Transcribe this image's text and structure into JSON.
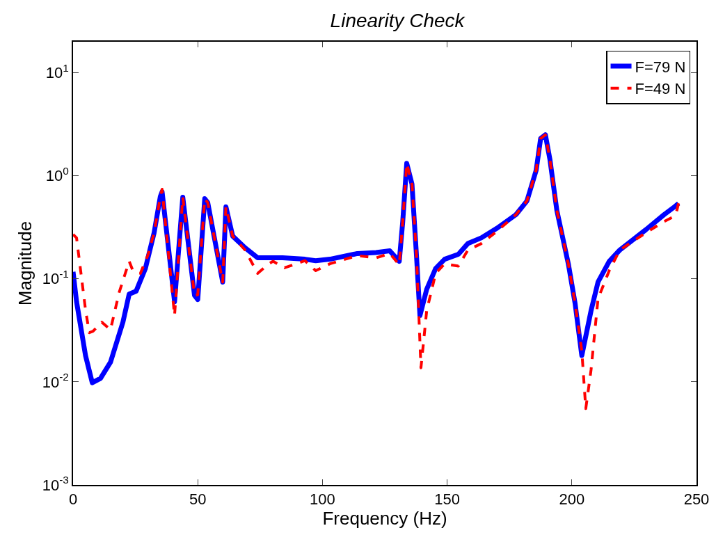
{
  "chart_data": {
    "type": "line",
    "title": "Linearity Check",
    "xlabel": "Frequency (Hz)",
    "ylabel": "Magnitude",
    "log": "y",
    "xlim": [
      0,
      250
    ],
    "xticks": [
      0,
      50,
      100,
      150,
      200,
      250
    ],
    "ylim": [
      0.001,
      20
    ],
    "yticks": [
      {
        "value": 0.001,
        "label": "10$^{-3}$"
      },
      {
        "value": 0.01,
        "label": "10$^{-2}$"
      },
      {
        "value": 0.1,
        "label": "10$^{-1}$"
      },
      {
        "value": 1,
        "label": "10$^{0}$"
      },
      {
        "value": 10,
        "label": "10$^{1}$"
      }
    ],
    "grid": false,
    "legend": "top right",
    "marker": "none",
    "series": [
      {
        "name": "F=79 N",
        "color": "#0000ff",
        "line_style": "solid",
        "x": [
          0,
          1.4,
          5,
          7.7,
          11,
          15,
          20,
          22.5,
          25.3,
          29,
          32.5,
          35,
          35.7,
          40.7,
          44,
          48.7,
          50,
          52.8,
          54,
          60,
          61.3,
          64,
          69,
          74,
          78.5,
          84,
          93,
          97.3,
          103,
          114,
          121.5,
          127,
          130.8,
          132.2,
          133.8,
          135.9,
          137.7,
          139.1,
          141.8,
          145.4,
          149,
          154.5,
          158.3,
          163.7,
          170,
          177.6,
          182,
          185.7,
          187.5,
          189.4,
          191.2,
          194,
          198.6,
          201.3,
          204,
          207.7,
          210.5,
          215,
          219.2,
          229.7,
          237,
          240.7,
          242.8
        ],
        "values": [
          0.117,
          0.06,
          0.018,
          0.0098,
          0.0108,
          0.0155,
          0.038,
          0.071,
          0.076,
          0.126,
          0.28,
          0.63,
          0.7,
          0.06,
          0.62,
          0.069,
          0.063,
          0.6,
          0.55,
          0.093,
          0.5,
          0.26,
          0.2,
          0.16,
          0.16,
          0.16,
          0.155,
          0.15,
          0.155,
          0.176,
          0.18,
          0.187,
          0.148,
          0.36,
          1.32,
          0.83,
          0.17,
          0.044,
          0.079,
          0.126,
          0.155,
          0.173,
          0.22,
          0.25,
          0.31,
          0.42,
          0.57,
          1.13,
          2.3,
          2.5,
          1.45,
          0.46,
          0.14,
          0.058,
          0.018,
          0.049,
          0.093,
          0.148,
          0.19,
          0.3,
          0.42,
          0.49,
          0.54
        ]
      },
      {
        "name": "F=49 N",
        "color": "#ff0000",
        "line_style": "dashed",
        "x": [
          0,
          1.4,
          5,
          6.5,
          8,
          11.5,
          15,
          18.5,
          22.5,
          24,
          27,
          30,
          32.5,
          35,
          35.7,
          40.7,
          44,
          48.7,
          50,
          52.8,
          54,
          60,
          61.3,
          64,
          69,
          74,
          78.5,
          80.2,
          84.8,
          93,
          97.3,
          103,
          114,
          121.5,
          127,
          130.8,
          132.2,
          133.8,
          135.9,
          137.7,
          139.5,
          141.8,
          145.4,
          149,
          154.5,
          158.3,
          163.7,
          170,
          177.6,
          182,
          185.7,
          187.5,
          189.4,
          191.2,
          194,
          198.6,
          201.3,
          204,
          205.6,
          207.7,
          210.5,
          215,
          219.2,
          229.7,
          237,
          240.7,
          242,
          242.8
        ],
        "values": [
          0.27,
          0.25,
          0.05,
          0.03,
          0.031,
          0.038,
          0.032,
          0.074,
          0.148,
          0.12,
          0.113,
          0.17,
          0.28,
          0.63,
          0.74,
          0.044,
          0.62,
          0.069,
          0.07,
          0.6,
          0.55,
          0.093,
          0.5,
          0.26,
          0.19,
          0.113,
          0.14,
          0.148,
          0.128,
          0.15,
          0.12,
          0.14,
          0.168,
          0.16,
          0.176,
          0.137,
          0.36,
          1.32,
          0.83,
          0.17,
          0.0137,
          0.049,
          0.113,
          0.14,
          0.133,
          0.19,
          0.22,
          0.29,
          0.42,
          0.57,
          1.13,
          2.3,
          2.5,
          1.45,
          0.46,
          0.14,
          0.058,
          0.02,
          0.0055,
          0.013,
          0.064,
          0.12,
          0.19,
          0.28,
          0.36,
          0.4,
          0.45,
          0.54
        ]
      }
    ]
  }
}
